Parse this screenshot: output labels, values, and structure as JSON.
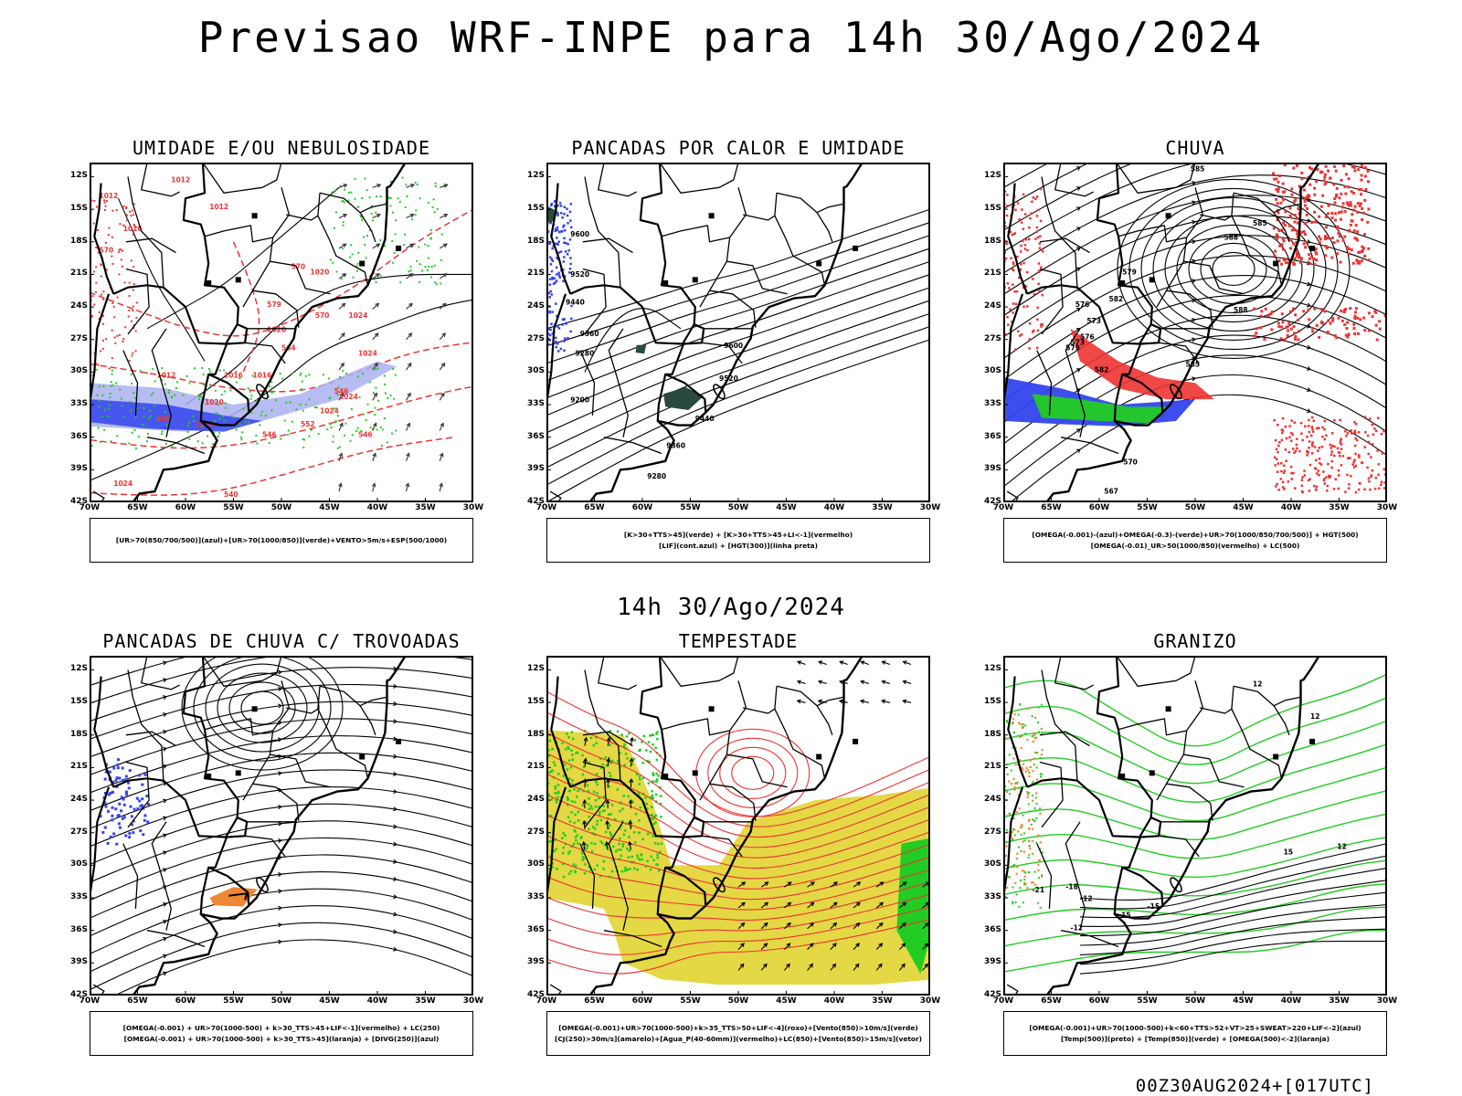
{
  "title": "Previsao WRF-INPE  para 14h 30/Ago/2024",
  "subtitle": "14h 30/Ago/2024",
  "footer": "00Z30AUG2024+[017UTC]",
  "axes": {
    "lat_labels": [
      "12S",
      "15S",
      "18S",
      "21S",
      "24S",
      "27S",
      "30S",
      "33S",
      "36S",
      "39S",
      "42S"
    ],
    "lon_labels": [
      "70W",
      "65W",
      "60W",
      "55W",
      "50W",
      "45W",
      "40W",
      "35W",
      "30W"
    ]
  },
  "panels": [
    {
      "title": "UMIDADE E/OU NEBULOSIDADE",
      "legend_line1": "[UR>70(850/700/500)](azul)+[UR>70(1000/850)](verde)+VENTO>5m/s+ESP(500/1000)",
      "legend_line2": "",
      "contour_labels": [
        "1012",
        "1012",
        "1016",
        "1012",
        "1020",
        "1016",
        "1020",
        "1024",
        "1024",
        "1024",
        "1012",
        "1016",
        "1020",
        "1020",
        "1024",
        "1024",
        "570",
        "570",
        "570",
        "579",
        "564",
        "546",
        "555",
        "552",
        "546",
        "546",
        "540"
      ]
    },
    {
      "title": "PANCADAS POR CALOR E UMIDADE",
      "legend_line1": "[K>30+TTS>45](verde) + [K>30+TTS>45+LI<-1](vermelho)",
      "legend_line2": "[LIF](cont.azul) + [HGT(300)](linha preta)",
      "contour_labels": [
        "9600",
        "9520",
        "9440",
        "9360",
        "9280",
        "9200",
        "9600",
        "9520",
        "9440",
        "9360",
        "9280"
      ]
    },
    {
      "title": "CHUVA",
      "legend_line1": "[OMEGA(-0.001)-(azul)+OMEGA(-0.3)-(verde)+UR>70(1000/850/700/500)] + HGT(500)",
      "legend_line2": "[OMEGA(-0.01)_UR>50(1000/850)(vermelho) + LC(500)",
      "contour_labels": [
        "585",
        "585",
        "588",
        "588",
        "579",
        "582",
        "573",
        "576",
        "579",
        "582",
        "585",
        "573",
        "570",
        "567",
        "576"
      ]
    },
    {
      "title": "PANCADAS DE CHUVA C/ TROVOADAS",
      "legend_line1": "[OMEGA(-0.001) + UR>70(1000-500) + k>30_TTS>45+LIF<-1](vermelho) + LC(250)",
      "legend_line2": "[OMEGA(-0.001) + UR>70(1000-500) + k>30_TTS>45](laranja) + [DIVG(250)](azul)",
      "contour_labels": []
    },
    {
      "title": "TEMPESTADE",
      "legend_line1": "[OMEGA(-0.001)+UR>70(1000-500)+k>35_TTS>50+LIF<-4](roxo)+[Vento(850)>10m/s](verde)",
      "legend_line2": "[CJ(250)>30m/s](amarelo)+[Agua_P(40-60mm)](vermelho)+LC(850)+[Vento(850)>15m/s](vetor)",
      "contour_labels": []
    },
    {
      "title": "GRANIZO",
      "legend_line1": "[OMEGA(-0.001)+UR>70(1000-500)+k<60+TTS>52+VT>25+SWEAT>220+LIF<-2](azul)",
      "legend_line2": "[Temp(500)](preto) + [Temp(850)](verde) + [OMEGA(500)<-2](laranja)",
      "contour_labels": [
        "12",
        "12",
        "15",
        "12",
        "-21",
        "-18",
        "-15",
        "-12",
        "-15",
        "-12"
      ]
    }
  ],
  "colors": {
    "blue": "#3344ee",
    "lightblue": "#aab0f0",
    "green": "#22cc22",
    "red": "#ee3333",
    "orange": "#ee8833",
    "yellow": "#e4d844",
    "darkgreen": "#2a4a3e"
  }
}
